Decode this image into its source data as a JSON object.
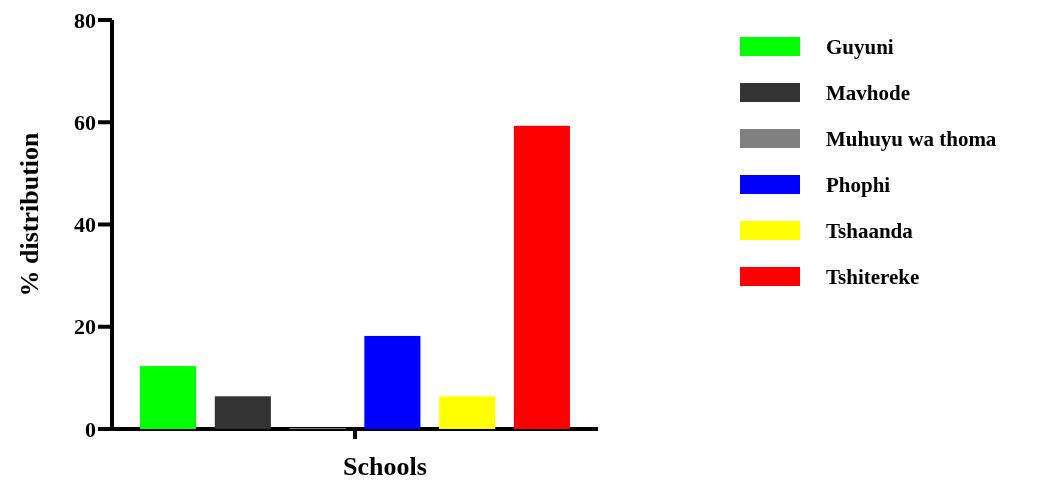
{
  "chart_data": {
    "type": "bar",
    "xlabel": "Schools",
    "ylabel": "% distribution",
    "categories": [
      null
    ],
    "ylim": [
      0,
      80
    ],
    "yticks": [
      0,
      20,
      40,
      60,
      80
    ],
    "grid": false,
    "legend": "right",
    "series": [
      {
        "name": "Guyuni",
        "color": "#00ff00",
        "values": [
          12.3
        ]
      },
      {
        "name": "Mavhode",
        "color": "#333333",
        "values": [
          6.4
        ]
      },
      {
        "name": "Muhuyu wa thoma",
        "color": "#808080",
        "values": [
          0
        ]
      },
      {
        "name": "Phophi",
        "color": "#0000ff",
        "values": [
          18.2
        ]
      },
      {
        "name": "Tshaanda",
        "color": "#ffff00",
        "values": [
          6.4
        ]
      },
      {
        "name": "Tshitereke",
        "color": "#ff0000",
        "values": [
          59.3
        ]
      }
    ]
  }
}
